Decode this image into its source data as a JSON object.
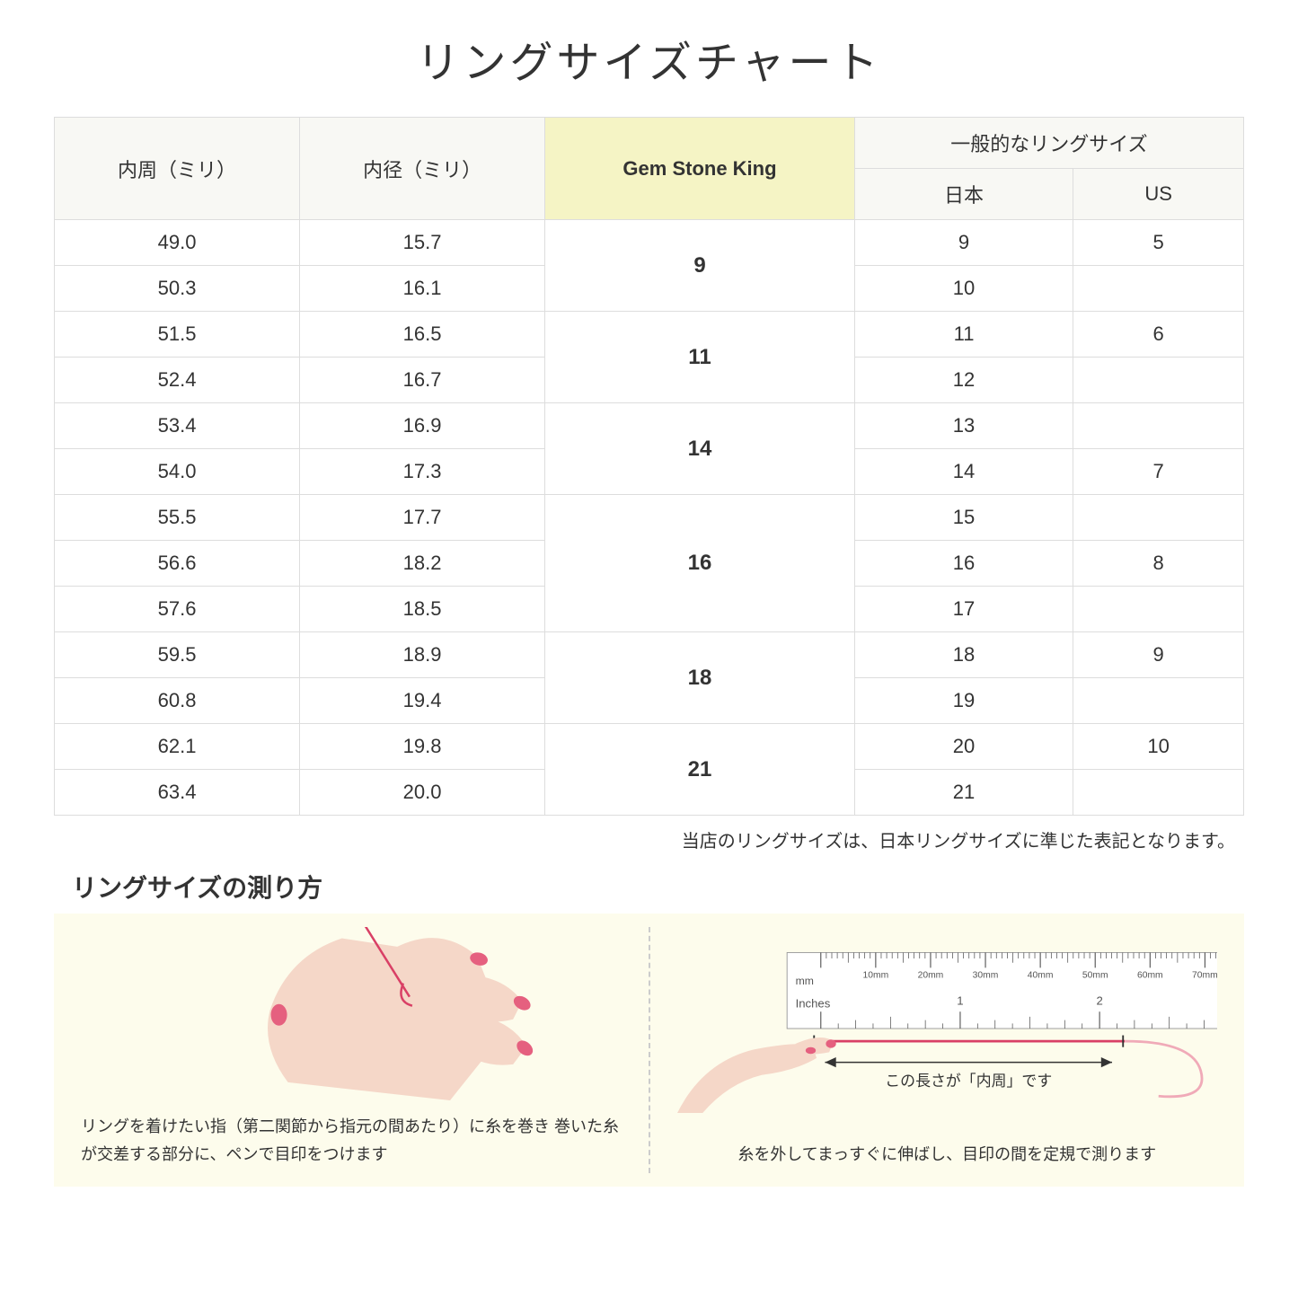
{
  "title": "リングサイズチャート",
  "table": {
    "headers": {
      "circumference": "内周（ミリ）",
      "diameter": "内径（ミリ）",
      "gsk": "Gem Stone King",
      "general": "一般的なリングサイズ",
      "japan": "日本",
      "us": "US"
    },
    "groups": [
      {
        "gsk": "9",
        "rows": [
          {
            "c": "49.0",
            "d": "15.7",
            "jp": "9",
            "us": "5"
          },
          {
            "c": "50.3",
            "d": "16.1",
            "jp": "10",
            "us": ""
          }
        ]
      },
      {
        "gsk": "11",
        "rows": [
          {
            "c": "51.5",
            "d": "16.5",
            "jp": "11",
            "us": "6"
          },
          {
            "c": "52.4",
            "d": "16.7",
            "jp": "12",
            "us": ""
          }
        ]
      },
      {
        "gsk": "14",
        "rows": [
          {
            "c": "53.4",
            "d": "16.9",
            "jp": "13",
            "us": ""
          },
          {
            "c": "54.0",
            "d": "17.3",
            "jp": "14",
            "us": "7"
          }
        ]
      },
      {
        "gsk": "16",
        "rows": [
          {
            "c": "55.5",
            "d": "17.7",
            "jp": "15",
            "us": ""
          },
          {
            "c": "56.6",
            "d": "18.2",
            "jp": "16",
            "us": "8"
          },
          {
            "c": "57.6",
            "d": "18.5",
            "jp": "17",
            "us": ""
          }
        ]
      },
      {
        "gsk": "18",
        "rows": [
          {
            "c": "59.5",
            "d": "18.9",
            "jp": "18",
            "us": "9"
          },
          {
            "c": "60.8",
            "d": "19.4",
            "jp": "19",
            "us": ""
          }
        ]
      },
      {
        "gsk": "21",
        "rows": [
          {
            "c": "62.1",
            "d": "19.8",
            "jp": "20",
            "us": "10"
          },
          {
            "c": "63.4",
            "d": "20.0",
            "jp": "21",
            "us": ""
          }
        ]
      }
    ],
    "colors": {
      "header_bg": "#f8f8f4",
      "gsk_header_bg": "#f5f4c5",
      "border": "#dddddd",
      "group_border": "#cccccc"
    }
  },
  "note": "当店のリングサイズは、日本リングサイズに準じた表記となります。",
  "howto": {
    "title": "リングサイズの測り方",
    "left_caption": "リングを着けたい指（第二関節から指元の間あたり）に糸を巻き\n巻いた糸が交差する部分に、ペンで目印をつけます",
    "right_caption": "糸を外してまっすぐに伸ばし、目印の間を定規で測ります",
    "measure_label": "この長さが「内周」です",
    "background": "#fdfcec",
    "hand_color": "#f5d7c8",
    "nail_color": "#e5607f",
    "thread_color": "#d94066",
    "ruler": {
      "mm_label": "mm",
      "inches_label": "Inches",
      "mm_ticks": [
        "10mm",
        "20mm",
        "30mm",
        "40mm",
        "50mm",
        "60mm",
        "70mm"
      ],
      "inch_ticks": [
        "1",
        "2"
      ]
    }
  }
}
